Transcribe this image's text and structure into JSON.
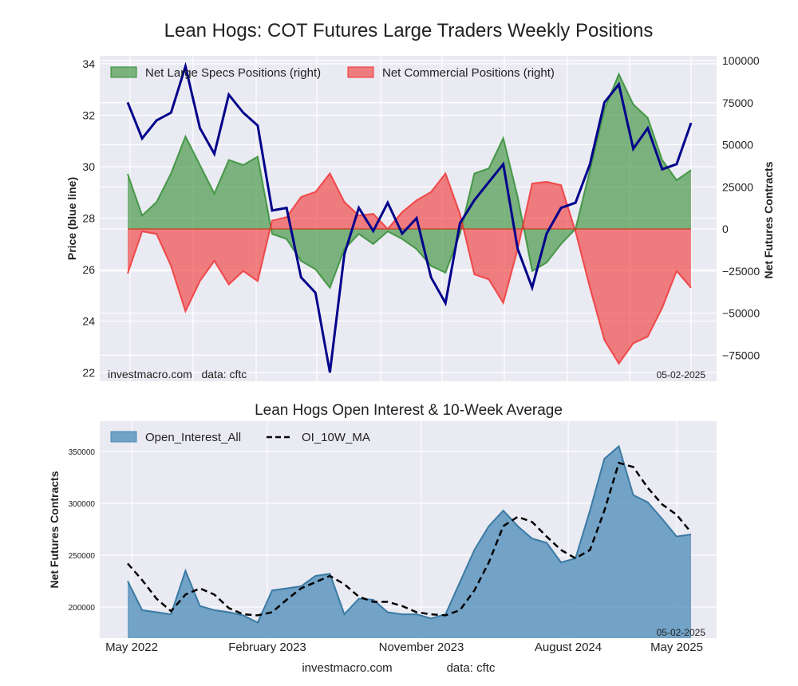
{
  "chart_data": [
    {
      "type": "area",
      "title": "Lean Hogs: COT Futures Large Traders Weekly Positions",
      "ylabel": "Price (blue line)",
      "y2label": "Net Futures Contracts",
      "ylim": [
        21.8,
        34.2
      ],
      "y2lim": [
        -85000,
        102000
      ],
      "yticks": [
        "22",
        "24",
        "26",
        "28",
        "30",
        "32",
        "34"
      ],
      "y2ticks": [
        "−75000",
        "−50000",
        "−25000",
        "0",
        "25000",
        "50000",
        "75000",
        "100000"
      ],
      "grid": true,
      "legend_position": "top",
      "watermark": "investmacro.com   data: cftc",
      "date_label": "05-02-2025",
      "x": [
        "2022-05-03",
        "2022-05-31",
        "2022-06-28",
        "2022-07-26",
        "2022-08-23",
        "2022-09-20",
        "2022-10-18",
        "2022-11-15",
        "2022-12-13",
        "2023-01-10",
        "2023-02-07",
        "2023-03-07",
        "2023-04-04",
        "2023-05-02",
        "2023-05-30",
        "2023-06-27",
        "2023-07-25",
        "2023-08-22",
        "2023-09-19",
        "2023-10-17",
        "2023-11-14",
        "2023-12-12",
        "2024-01-09",
        "2024-02-06",
        "2024-03-05",
        "2024-04-02",
        "2024-04-30",
        "2024-05-28",
        "2024-06-25",
        "2024-07-23",
        "2024-08-20",
        "2024-09-17",
        "2024-10-15",
        "2024-11-12",
        "2024-12-10",
        "2025-01-07",
        "2025-02-04",
        "2025-03-04",
        "2025-04-01",
        "2025-04-29"
      ],
      "series": [
        {
          "name": "Net Large Specs Positions (right)",
          "axis": "right",
          "color": "#2e8b2e",
          "values": [
            32700,
            8000,
            16000,
            33000,
            55000,
            38000,
            21000,
            41000,
            38000,
            43000,
            -3000,
            -6000,
            -19000,
            -24000,
            -35000,
            -12000,
            -3000,
            -9000,
            -1500,
            -6000,
            -12000,
            -22000,
            -26000,
            -3000,
            33000,
            36000,
            54000,
            19000,
            -25000,
            -20000,
            -9000,
            0,
            35000,
            71000,
            92000,
            74000,
            66000,
            41000,
            29000,
            35000
          ]
        },
        {
          "name": "Net Commercial Positions (right)",
          "axis": "right",
          "color": "#f03030",
          "values": [
            -26500,
            -1500,
            -3000,
            -22000,
            -49000,
            -31000,
            -19000,
            -33000,
            -25000,
            -31000,
            5000,
            7000,
            19000,
            22000,
            33000,
            16000,
            8000,
            9000,
            0,
            10000,
            17000,
            22000,
            33000,
            9000,
            -27000,
            -30000,
            -44000,
            -12000,
            27000,
            28000,
            26000,
            -1500,
            -35000,
            -66000,
            -80000,
            -68000,
            -64000,
            -47000,
            -25000,
            -35000
          ]
        },
        {
          "axis": "left",
          "color": "#00008b",
          "values": [
            32.5,
            31.1,
            31.8,
            32.1,
            33.9,
            31.5,
            30.5,
            32.8,
            32.1,
            31.6,
            28.3,
            28.4,
            25.7,
            25.1,
            22.0,
            26.6,
            28.4,
            27.5,
            28.6,
            27.4,
            28.0,
            25.7,
            24.7,
            27.8,
            28.7,
            29.4,
            30.1,
            26.8,
            25.3,
            27.4,
            28.4,
            28.6,
            30.1,
            32.5,
            33.2,
            30.7,
            31.5,
            29.9,
            30.1,
            31.7
          ]
        }
      ]
    },
    {
      "type": "area",
      "title": "Lean Hogs Open Interest & 10-Week Average",
      "ylabel": "Net Futures Contracts",
      "ylim": [
        170000,
        379000
      ],
      "yticks": [
        "200000",
        "250000",
        "300000",
        "350000"
      ],
      "xticks": [
        "May 2022",
        "February 2023",
        "November 2023",
        "August 2024",
        "May 2025"
      ],
      "grid": true,
      "legend_position": "top-left",
      "date_label": "05-02-2025",
      "series": [
        {
          "name": "Open_Interest_All",
          "color": "#4a8ab5",
          "values": [
            225000,
            197000,
            195000,
            193000,
            235000,
            201000,
            197000,
            195000,
            192000,
            185000,
            216000,
            218000,
            220000,
            230000,
            232000,
            193000,
            208000,
            207000,
            195000,
            193000,
            193000,
            189000,
            193000,
            224000,
            255000,
            278000,
            293000,
            278000,
            266000,
            262000,
            243000,
            247000,
            293000,
            343000,
            355000,
            308000,
            301000,
            285000,
            268000,
            270000
          ]
        },
        {
          "name": "OI_10W_MA",
          "color": "#000000",
          "style": "dashed",
          "values": [
            242000,
            226000,
            208000,
            196000,
            212000,
            218000,
            212000,
            199000,
            193000,
            192000,
            195000,
            207000,
            218000,
            224000,
            230000,
            222000,
            210000,
            205000,
            205000,
            201000,
            195000,
            193000,
            192000,
            197000,
            216000,
            243000,
            278000,
            287000,
            282000,
            268000,
            255000,
            247000,
            255000,
            293000,
            339000,
            335000,
            315000,
            299000,
            289000,
            272000
          ]
        }
      ]
    }
  ],
  "footer": {
    "site": "investmacro.com",
    "source": "data: cftc"
  }
}
